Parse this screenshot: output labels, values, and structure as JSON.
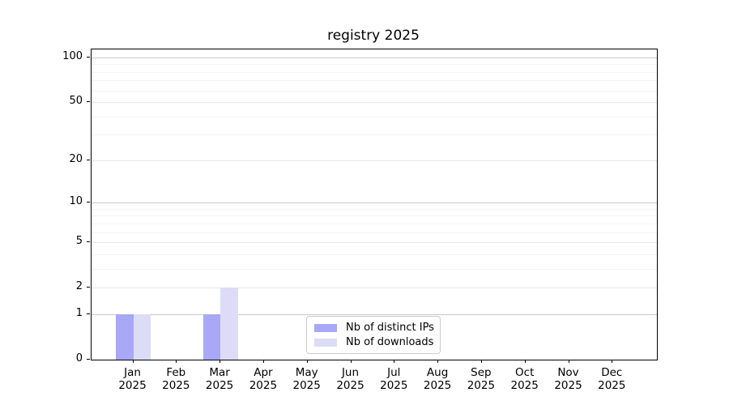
{
  "title": "registry 2025",
  "legend": {
    "items": [
      {
        "label": "Nb of distinct IPs",
        "color": "#a8a8f6"
      },
      {
        "label": "Nb of downloads",
        "color": "#dcdcf6"
      }
    ]
  },
  "colors": {
    "background": "#ffffff",
    "axis": "#000000",
    "grid_major": "#c9c9c9",
    "grid_mid": "#e7e7e7",
    "grid_minor": "#f3f3f3",
    "bar_distinct_ips": "#a8a8f6",
    "bar_downloads": "#dcdcf6"
  },
  "chart_data": {
    "type": "bar",
    "title": "registry 2025",
    "categories": [
      "Jan 2025",
      "Feb 2025",
      "Mar 2025",
      "Apr 2025",
      "May 2025",
      "Jun 2025",
      "Jul 2025",
      "Aug 2025",
      "Sep 2025",
      "Oct 2025",
      "Nov 2025",
      "Dec 2025"
    ],
    "series": [
      {
        "name": "Nb of distinct IPs",
        "color": "#a8a8f6",
        "values": [
          1,
          0,
          1,
          0,
          0,
          0,
          0,
          0,
          0,
          0,
          0,
          0
        ]
      },
      {
        "name": "Nb of downloads",
        "color": "#dcdcf6",
        "values": [
          1,
          0,
          2,
          0,
          0,
          0,
          0,
          0,
          0,
          0,
          0,
          0
        ]
      }
    ],
    "xlabel": "",
    "ylabel": "",
    "yscale": "log1p",
    "y_ticks": [
      0,
      1,
      2,
      5,
      10,
      20,
      50,
      100
    ],
    "y_minor_ticks": [
      3,
      4,
      6,
      7,
      8,
      9,
      30,
      40,
      60,
      70,
      80,
      90
    ],
    "ylim": [
      0,
      113
    ],
    "grid": "both",
    "legend_position": "lower center"
  }
}
